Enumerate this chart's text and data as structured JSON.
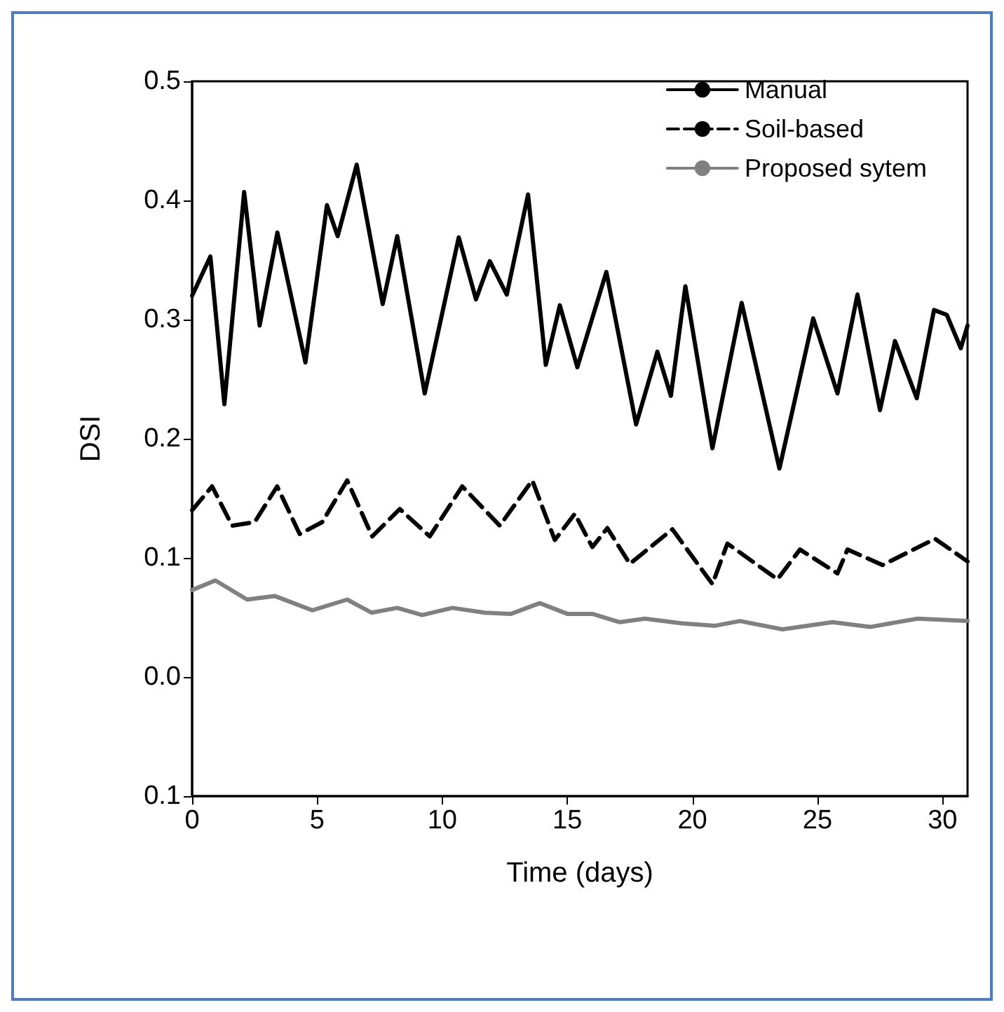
{
  "chart_data": {
    "type": "line",
    "xlabel": "Time (days)",
    "ylabel": "DSI",
    "xlim": [
      0,
      31
    ],
    "xticks": [
      0,
      5,
      10,
      15,
      20,
      25,
      30
    ],
    "ylim": [
      -0.1,
      0.5
    ],
    "yticks": [
      {
        "value": -0.1,
        "label": "0.1"
      },
      {
        "value": 0,
        "label": "0.0"
      },
      0.1,
      0.2,
      0.3,
      0.4,
      0.5
    ],
    "legend": "top right",
    "grid": false,
    "marker": "none",
    "series": [
      {
        "name": "Manual",
        "color": "#000000",
        "line_style": "solid",
        "x": [
          0,
          0.73,
          1.29,
          2.08,
          2.7,
          3.41,
          4.53,
          5.39,
          5.82,
          6.58,
          7.62,
          8.2,
          9.3,
          10.66,
          11.35,
          11.9,
          12.58,
          13.43,
          14.14,
          14.7,
          15.4,
          16.56,
          17.75,
          18.6,
          19.14,
          19.72,
          20.8,
          21.97,
          23.48,
          24.83,
          25.8,
          26.6,
          27.5,
          28.1,
          28.97,
          29.66,
          30.17,
          30.73,
          31
        ],
        "values": [
          0.32,
          0.353,
          0.229,
          0.407,
          0.295,
          0.373,
          0.264,
          0.396,
          0.37,
          0.43,
          0.313,
          0.37,
          0.238,
          0.369,
          0.317,
          0.349,
          0.321,
          0.405,
          0.262,
          0.312,
          0.26,
          0.34,
          0.212,
          0.273,
          0.236,
          0.328,
          0.192,
          0.314,
          0.175,
          0.301,
          0.238,
          0.321,
          0.224,
          0.282,
          0.234,
          0.308,
          0.304,
          0.276,
          0.295
        ]
      },
      {
        "name": "Soil-based",
        "color": "#000000",
        "line_style": "dashed",
        "x": [
          0,
          0.8,
          1.6,
          2.5,
          3.4,
          4.3,
          5.2,
          6.2,
          7.2,
          8.3,
          9.5,
          10.8,
          12.3,
          13.6,
          14.5,
          15.3,
          16,
          16.6,
          17.5,
          19.2,
          20.8,
          21.4,
          23.4,
          24.3,
          25.8,
          26.2,
          27.6,
          29.7,
          31
        ],
        "values": [
          0.14,
          0.16,
          0.127,
          0.13,
          0.16,
          0.12,
          0.13,
          0.165,
          0.118,
          0.141,
          0.118,
          0.16,
          0.127,
          0.165,
          0.115,
          0.137,
          0.109,
          0.125,
          0.095,
          0.124,
          0.078,
          0.112,
          0.082,
          0.107,
          0.087,
          0.107,
          0.094,
          0.116,
          0.097
        ]
      },
      {
        "name": "Proposed sytem",
        "color": "#808080",
        "line_style": "solid",
        "x": [
          0,
          0.93,
          2.2,
          3.3,
          4.8,
          6.2,
          7.17,
          8.2,
          9.2,
          10.4,
          11.7,
          12.75,
          13.9,
          15,
          16,
          17.1,
          18.1,
          19.6,
          20.9,
          21.9,
          23.6,
          25.6,
          27.1,
          29,
          31
        ],
        "values": [
          0.073,
          0.081,
          0.065,
          0.068,
          0.056,
          0.065,
          0.054,
          0.058,
          0.052,
          0.058,
          0.054,
          0.053,
          0.062,
          0.053,
          0.053,
          0.046,
          0.049,
          0.045,
          0.043,
          0.047,
          0.04,
          0.046,
          0.042,
          0.049,
          0.047
        ]
      }
    ]
  }
}
